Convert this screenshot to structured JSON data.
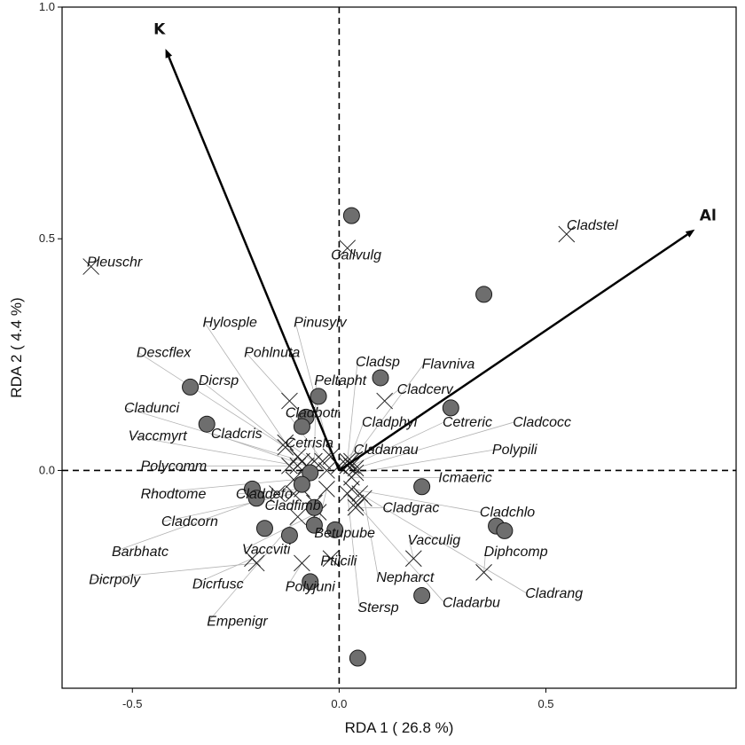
{
  "chart_data": {
    "type": "scatter",
    "subtype": "RDA triplot",
    "xlabel": "RDA 1  ( 26.8 %)",
    "ylabel": "RDA 2  ( 4.4 %)",
    "xlim": [
      -0.67,
      0.96
    ],
    "ylim": [
      -0.47,
      1.0
    ],
    "x_ticks": [
      -0.5,
      0.0,
      0.5
    ],
    "x_tick_labels": [
      "-0.5",
      "0.0",
      "0.5"
    ],
    "y_ticks": [
      0.0,
      0.5,
      1.0
    ],
    "y_tick_labels": [
      "0.0",
      "0.5",
      "1.0"
    ],
    "reference_lines": {
      "x": 0,
      "y": 0,
      "style": "dashed"
    },
    "grid": false,
    "legend": "none",
    "colors": {
      "site_fill": "#6e6e6e",
      "site_stroke": "#1a1a1a",
      "arrow": "#000000",
      "leader": "#b3b3b3",
      "text": "#111111"
    },
    "sites": [
      {
        "x": 0.03,
        "y": 0.55
      },
      {
        "x": 0.35,
        "y": 0.38
      },
      {
        "x": -0.36,
        "y": 0.18
      },
      {
        "x": -0.32,
        "y": 0.1
      },
      {
        "x": 0.1,
        "y": 0.2
      },
      {
        "x": 0.27,
        "y": 0.135
      },
      {
        "x": -0.05,
        "y": 0.16
      },
      {
        "x": -0.08,
        "y": 0.115
      },
      {
        "x": -0.09,
        "y": 0.095
      },
      {
        "x": -0.07,
        "y": -0.005
      },
      {
        "x": -0.09,
        "y": -0.03
      },
      {
        "x": -0.21,
        "y": -0.04
      },
      {
        "x": -0.2,
        "y": -0.06
      },
      {
        "x": 0.2,
        "y": -0.035
      },
      {
        "x": -0.06,
        "y": -0.08
      },
      {
        "x": -0.18,
        "y": -0.125
      },
      {
        "x": -0.12,
        "y": -0.14
      },
      {
        "x": -0.06,
        "y": -0.118
      },
      {
        "x": -0.01,
        "y": -0.128
      },
      {
        "x": 0.38,
        "y": -0.12
      },
      {
        "x": 0.4,
        "y": -0.13
      },
      {
        "x": -0.07,
        "y": -0.24
      },
      {
        "x": 0.2,
        "y": -0.27
      },
      {
        "x": 0.045,
        "y": -0.405
      }
    ],
    "species": [
      {
        "name": "Pleuschr",
        "x": -0.6,
        "y": 0.44,
        "label_x": -0.61,
        "label_y": 0.44,
        "anchor": "start",
        "leader": false
      },
      {
        "name": "Cladstel",
        "x": 0.55,
        "y": 0.51,
        "label_x": 0.55,
        "label_y": 0.52,
        "anchor": "start",
        "leader": false
      },
      {
        "name": "Callvulg",
        "x": 0.02,
        "y": 0.48,
        "label_x": -0.02,
        "label_y": 0.455,
        "anchor": "start",
        "leader": false
      },
      {
        "name": "Hylosple",
        "x": -0.13,
        "y": 0.06,
        "label_x": -0.33,
        "label_y": 0.31,
        "anchor": "start",
        "leader": true
      },
      {
        "name": "Pinusylv",
        "x": -0.02,
        "y": 0.03,
        "label_x": -0.11,
        "label_y": 0.31,
        "anchor": "start",
        "leader": true
      },
      {
        "name": "Descflex",
        "x": -0.13,
        "y": 0.05,
        "label_x": -0.49,
        "label_y": 0.245,
        "anchor": "start",
        "leader": true
      },
      {
        "name": "Pohlnuta",
        "x": -0.12,
        "y": 0.15,
        "label_x": -0.23,
        "label_y": 0.245,
        "anchor": "start",
        "leader": true
      },
      {
        "name": "Cladsp",
        "x": 0.02,
        "y": 0.02,
        "label_x": 0.04,
        "label_y": 0.225,
        "anchor": "start",
        "leader": true
      },
      {
        "name": "Flavniva",
        "x": 0.03,
        "y": 0.02,
        "label_x": 0.2,
        "label_y": 0.22,
        "anchor": "start",
        "leader": true
      },
      {
        "name": "Dicrsp",
        "x": -0.1,
        "y": 0.03,
        "label_x": -0.34,
        "label_y": 0.185,
        "anchor": "start",
        "leader": true
      },
      {
        "name": "Peltapht",
        "x": -0.06,
        "y": 0.02,
        "label_x": -0.06,
        "label_y": 0.185,
        "anchor": "start",
        "leader": true
      },
      {
        "name": "Cladcerv",
        "x": 0.11,
        "y": 0.15,
        "label_x": 0.14,
        "label_y": 0.165,
        "anchor": "start",
        "leader": true
      },
      {
        "name": "Cladunci",
        "x": -0.09,
        "y": 0.02,
        "label_x": -0.52,
        "label_y": 0.125,
        "anchor": "start",
        "leader": true
      },
      {
        "name": "Cladbotr",
        "x": -0.04,
        "y": 0.02,
        "label_x": -0.13,
        "label_y": 0.115,
        "anchor": "start",
        "leader": true
      },
      {
        "name": "Cladphyl",
        "x": 0.02,
        "y": 0.01,
        "label_x": 0.055,
        "label_y": 0.095,
        "anchor": "start",
        "leader": true
      },
      {
        "name": "Cetreric",
        "x": 0.03,
        "y": 0.01,
        "label_x": 0.25,
        "label_y": 0.095,
        "anchor": "start",
        "leader": true
      },
      {
        "name": "Cladcocc",
        "x": 0.04,
        "y": 0.005,
        "label_x": 0.42,
        "label_y": 0.095,
        "anchor": "start",
        "leader": true
      },
      {
        "name": "Vaccmyrt",
        "x": -0.1,
        "y": 0.01,
        "label_x": -0.51,
        "label_y": 0.065,
        "anchor": "start",
        "leader": true
      },
      {
        "name": "Cladcris",
        "x": -0.08,
        "y": 0.01,
        "label_x": -0.31,
        "label_y": 0.07,
        "anchor": "start",
        "leader": true
      },
      {
        "name": "Cetrisla",
        "x": -0.03,
        "y": 0.0,
        "label_x": -0.13,
        "label_y": 0.05,
        "anchor": "start",
        "leader": true
      },
      {
        "name": "Cladamau",
        "x": 0.0,
        "y": 0.01,
        "label_x": 0.035,
        "label_y": 0.035,
        "anchor": "start",
        "leader": true
      },
      {
        "name": "Polypili",
        "x": 0.04,
        "y": -0.005,
        "label_x": 0.37,
        "label_y": 0.035,
        "anchor": "start",
        "leader": true
      },
      {
        "name": "Polycomm",
        "x": -0.12,
        "y": 0.01,
        "label_x": -0.48,
        "label_y": 0.0,
        "anchor": "start",
        "leader": true
      },
      {
        "name": "Icmaeric",
        "x": 0.03,
        "y": -0.015,
        "label_x": 0.24,
        "label_y": -0.025,
        "anchor": "start",
        "leader": true
      },
      {
        "name": "Rhodtome",
        "x": -0.11,
        "y": -0.02,
        "label_x": -0.48,
        "label_y": -0.06,
        "anchor": "start",
        "leader": true
      },
      {
        "name": "Claddefo",
        "x": -0.09,
        "y": -0.04,
        "label_x": -0.25,
        "label_y": -0.06,
        "anchor": "start",
        "leader": true
      },
      {
        "name": "Cladfimb",
        "x": -0.06,
        "y": -0.07,
        "label_x": -0.18,
        "label_y": -0.085,
        "anchor": "start",
        "leader": true
      },
      {
        "name": "Cladgrac",
        "x": 0.04,
        "y": -0.08,
        "label_x": 0.105,
        "label_y": -0.09,
        "anchor": "start",
        "leader": true
      },
      {
        "name": "Cladchlo",
        "x": 0.03,
        "y": -0.04,
        "label_x": 0.34,
        "label_y": -0.1,
        "anchor": "start",
        "leader": true
      },
      {
        "name": "Cladcorn",
        "x": -0.11,
        "y": -0.05,
        "label_x": -0.43,
        "label_y": -0.12,
        "anchor": "start",
        "leader": true
      },
      {
        "name": "Betupube",
        "x": -0.03,
        "y": -0.04,
        "label_x": -0.06,
        "label_y": -0.145,
        "anchor": "start",
        "leader": true
      },
      {
        "name": "Vacculig",
        "x": 0.18,
        "y": -0.19,
        "label_x": 0.165,
        "label_y": -0.16,
        "anchor": "start",
        "leader": true
      },
      {
        "name": "Barbhatc",
        "x": -0.15,
        "y": -0.05,
        "label_x": -0.55,
        "label_y": -0.185,
        "anchor": "start",
        "leader": true
      },
      {
        "name": "Vaccviti",
        "x": -0.05,
        "y": -0.09,
        "label_x": -0.235,
        "label_y": -0.18,
        "anchor": "start",
        "leader": true
      },
      {
        "name": "Diphcomp",
        "x": 0.35,
        "y": -0.22,
        "label_x": 0.35,
        "label_y": -0.185,
        "anchor": "start",
        "leader": true
      },
      {
        "name": "Ptilcili",
        "x": -0.02,
        "y": -0.19,
        "label_x": -0.045,
        "label_y": -0.205,
        "anchor": "start",
        "leader": true
      },
      {
        "name": "Dicrpoly",
        "x": -0.2,
        "y": -0.2,
        "label_x": -0.605,
        "label_y": -0.245,
        "anchor": "start",
        "leader": true
      },
      {
        "name": "Dicrfusc",
        "x": -0.21,
        "y": -0.19,
        "label_x": -0.355,
        "label_y": -0.255,
        "anchor": "start",
        "leader": true
      },
      {
        "name": "Polyjuni",
        "x": -0.09,
        "y": -0.2,
        "label_x": -0.13,
        "label_y": -0.26,
        "anchor": "start",
        "leader": true
      },
      {
        "name": "Nepharct",
        "x": 0.06,
        "y": -0.06,
        "label_x": 0.09,
        "label_y": -0.24,
        "anchor": "start",
        "leader": true
      },
      {
        "name": "Cladarbu",
        "x": 0.04,
        "y": -0.07,
        "label_x": 0.25,
        "label_y": -0.295,
        "anchor": "start",
        "leader": true
      },
      {
        "name": "Cladrang",
        "x": 0.05,
        "y": -0.05,
        "label_x": 0.45,
        "label_y": -0.275,
        "anchor": "start",
        "leader": true
      },
      {
        "name": "Stersp",
        "x": 0.02,
        "y": -0.05,
        "label_x": 0.045,
        "label_y": -0.305,
        "anchor": "start",
        "leader": true
      },
      {
        "name": "Empenigr",
        "x": -0.1,
        "y": -0.1,
        "label_x": -0.32,
        "label_y": -0.335,
        "anchor": "start",
        "leader": true
      }
    ],
    "environment": [
      {
        "name": "K",
        "x": -0.42,
        "y": 0.91
      },
      {
        "name": "Al",
        "x": 0.86,
        "y": 0.52
      }
    ]
  }
}
